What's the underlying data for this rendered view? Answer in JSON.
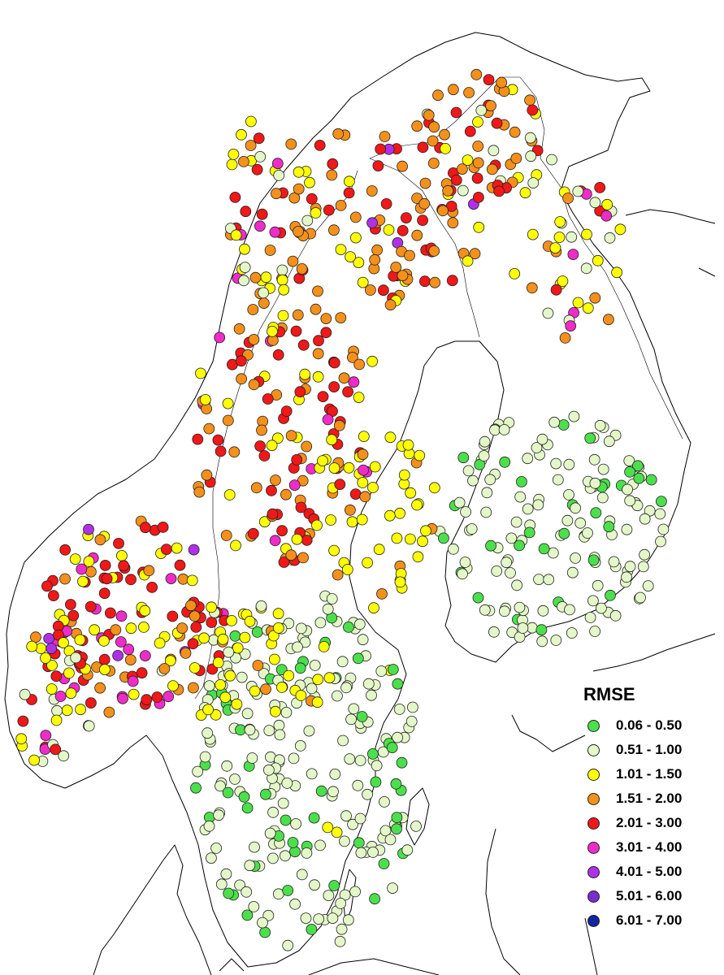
{
  "legend": {
    "title": "RMSE",
    "classes": [
      {
        "label": "0.06 - 0.50",
        "color": "#4be04b"
      },
      {
        "label": "0.51 - 1.00",
        "color": "#e4f7c8"
      },
      {
        "label": "1.01 - 1.50",
        "color": "#ffff00"
      },
      {
        "label": "1.51 - 2.00",
        "color": "#f5901a"
      },
      {
        "label": "2.01 - 3.00",
        "color": "#f01818"
      },
      {
        "label": "3.01 - 4.00",
        "color": "#f02cc8"
      },
      {
        "label": "4.01 - 5.00",
        "color": "#b030e8"
      },
      {
        "label": "5.01 - 6.00",
        "color": "#7a2cd0"
      },
      {
        "label": "6.01 - 7.00",
        "color": "#1424a0"
      }
    ]
  }
}
